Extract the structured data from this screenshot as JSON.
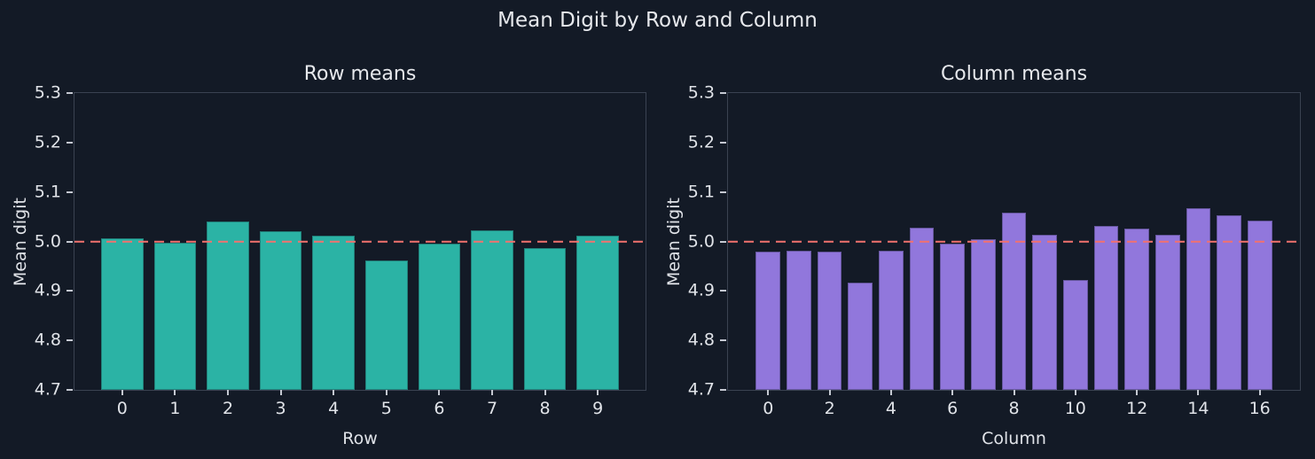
{
  "figure": {
    "suptitle": "Mean Digit by Row and Column",
    "background_color": "#131a26",
    "text_color": "#e3e5ea",
    "spine_color": "#3a4251"
  },
  "chart_data": [
    {
      "type": "bar",
      "title": "Row means",
      "xlabel": "Row",
      "ylabel": "Mean digit",
      "categories": [
        0,
        1,
        2,
        3,
        4,
        5,
        6,
        7,
        8,
        9
      ],
      "values": [
        5.007,
        4.997,
        5.041,
        5.021,
        5.011,
        4.962,
        4.996,
        5.022,
        4.987,
        5.012
      ],
      "bar_color": "#2bb3a5",
      "ylim": [
        4.7,
        5.3
      ],
      "yticks": [
        4.7,
        4.8,
        4.9,
        5.0,
        5.1,
        5.2,
        5.3
      ],
      "xticks": [
        0,
        1,
        2,
        3,
        4,
        5,
        6,
        7,
        8,
        9
      ],
      "grid": false,
      "legend": null,
      "reference_line": {
        "y": 5.0,
        "color": "#f3716e",
        "style": "dashed"
      }
    },
    {
      "type": "bar",
      "title": "Column means",
      "xlabel": "Column",
      "ylabel": "Mean digit",
      "categories": [
        0,
        1,
        2,
        3,
        4,
        5,
        6,
        7,
        8,
        9,
        10,
        11,
        12,
        13,
        14,
        15,
        16
      ],
      "values": [
        4.979,
        4.981,
        4.98,
        4.916,
        4.982,
        5.027,
        4.995,
        5.004,
        5.059,
        5.014,
        4.923,
        5.032,
        5.026,
        5.014,
        5.068,
        5.053,
        5.042
      ],
      "bar_color": "#9177dc",
      "ylim": [
        4.7,
        5.3
      ],
      "yticks": [
        4.7,
        4.8,
        4.9,
        5.0,
        5.1,
        5.2,
        5.3
      ],
      "xticks": [
        0,
        2,
        4,
        6,
        8,
        10,
        12,
        14,
        16
      ],
      "grid": false,
      "legend": null,
      "reference_line": {
        "y": 5.0,
        "color": "#f3716e",
        "style": "dashed"
      }
    }
  ]
}
